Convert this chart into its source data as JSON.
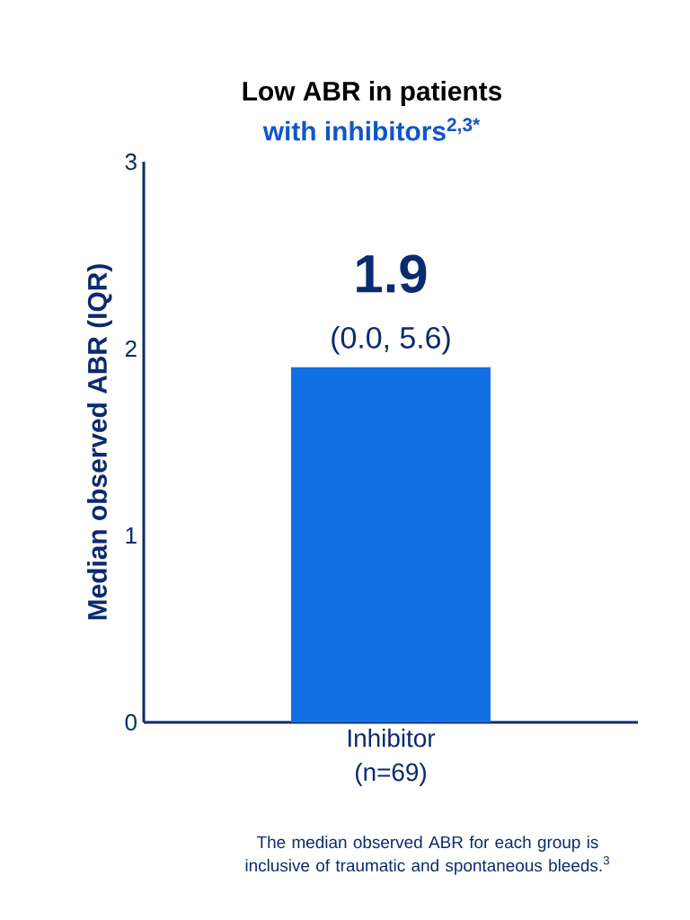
{
  "chart_data": {
    "type": "bar",
    "title": "Low ABR in patients",
    "subtitle": "with inhibitors$^{2,3*}$",
    "ylabel": "Median observed ABR (IQR)",
    "categories": [
      "Inhibitor (n=69)"
    ],
    "values": [
      1.9
    ],
    "color": "#1170e4",
    "value_labels": [
      "1.9"
    ],
    "ylim": [
      0,
      3
    ],
    "yticks": [
      0,
      1,
      2,
      3
    ],
    "annotations": [
      {
        "text": "(0.0, 5.6)",
        "x": "Inhibitor (n=69)",
        "y": 1.9
      },
      "The median observed ABR for each group is inclusive of traumatic and spontaneous bleeds.$^{3}$"
    ]
  }
}
